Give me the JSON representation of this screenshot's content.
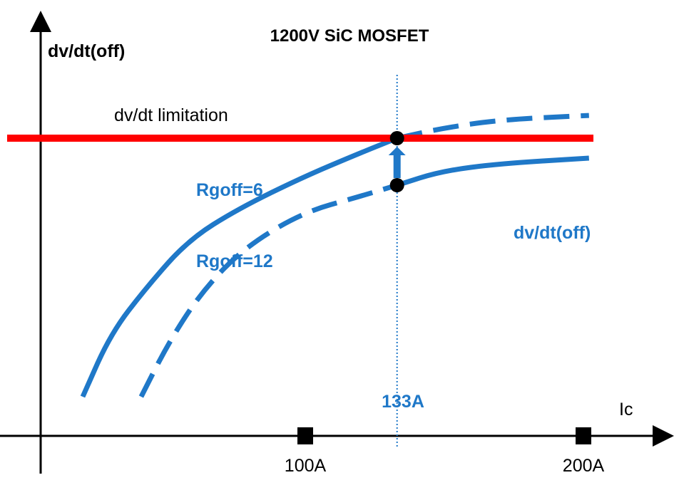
{
  "chart_data": {
    "type": "line",
    "title": "1200V SiC MOSFET",
    "ylabel": "dv/dt(off)",
    "xlabel": "Ic",
    "x_ticks": [
      {
        "value": 100,
        "label": "100A"
      },
      {
        "value": 200,
        "label": "200A"
      }
    ],
    "xlim": [
      0,
      225
    ],
    "ylim": [
      0,
      100
    ],
    "grid": false,
    "limit_line": {
      "label": "dv/dt limitation",
      "value": 76,
      "color": "#ff0000"
    },
    "marker_line": {
      "value": 133,
      "label": "133A",
      "color": "#1f78c8"
    },
    "curve_label": "dv/dt(off)",
    "series": [
      {
        "name": "Rgoff=6",
        "color": "#1f78c8",
        "x": [
          20,
          30,
          43,
          58,
          76,
          99,
          119,
          133,
          149,
          170,
          202
        ],
        "y": [
          10,
          26,
          38,
          50,
          58,
          66,
          72,
          76,
          78.5,
          80.7,
          81.8
        ],
        "solid_until": 133
      },
      {
        "name": "Rgoff=12",
        "color": "#1f78c8",
        "x": [
          41,
          51,
          63,
          78,
          99,
          119,
          133,
          149,
          170,
          202
        ],
        "y": [
          10,
          24,
          37,
          48,
          57,
          61,
          64,
          67.6,
          69.5,
          70.9
        ],
        "solid_from": 133
      }
    ],
    "points": [
      {
        "x": 133,
        "y": 76
      },
      {
        "x": 133,
        "y": 64
      }
    ],
    "arrow": {
      "from_y": 64,
      "to_y": 76,
      "x": 133
    }
  }
}
